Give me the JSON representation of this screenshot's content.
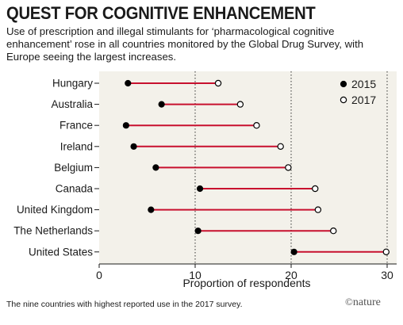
{
  "title": "QUEST FOR COGNITIVE ENHANCEMENT",
  "subtitle": "Use of prescription and illegal stimulants for ‘pharmacological cognitive enhancement’ rose in all countries monitored by the Global Drug Survey, with Europe seeing the largest increases.",
  "footnote": "The nine countries with highest reported use in the 2017 survey.",
  "brand": "nature",
  "colors": {
    "plot_background": "#f3f1ea",
    "connector": "#c8102e",
    "dot_2015": "#000000",
    "dot_2017_fill": "#ffffff",
    "grid": "#333333"
  },
  "chart_data": {
    "type": "dumbbell",
    "title": "",
    "xlabel": "Proportion of respondents",
    "ylabel": "",
    "xlim": [
      0,
      30
    ],
    "xticks": [
      0,
      10,
      20,
      30
    ],
    "grid": "dotted vertical at 10, 20, 30",
    "legend_position": "top-right",
    "categories": [
      "Hungary",
      "Australia",
      "France",
      "Ireland",
      "Belgium",
      "Canada",
      "United Kingdom",
      "The Netherlands",
      "United States"
    ],
    "series": [
      {
        "name": "2015",
        "marker": "filled",
        "values": [
          3.0,
          6.5,
          2.8,
          3.6,
          5.9,
          10.5,
          5.4,
          10.3,
          20.3
        ]
      },
      {
        "name": "2017",
        "marker": "open",
        "values": [
          12.4,
          14.7,
          16.4,
          18.9,
          19.7,
          22.5,
          22.8,
          24.4,
          29.9
        ]
      }
    ]
  }
}
